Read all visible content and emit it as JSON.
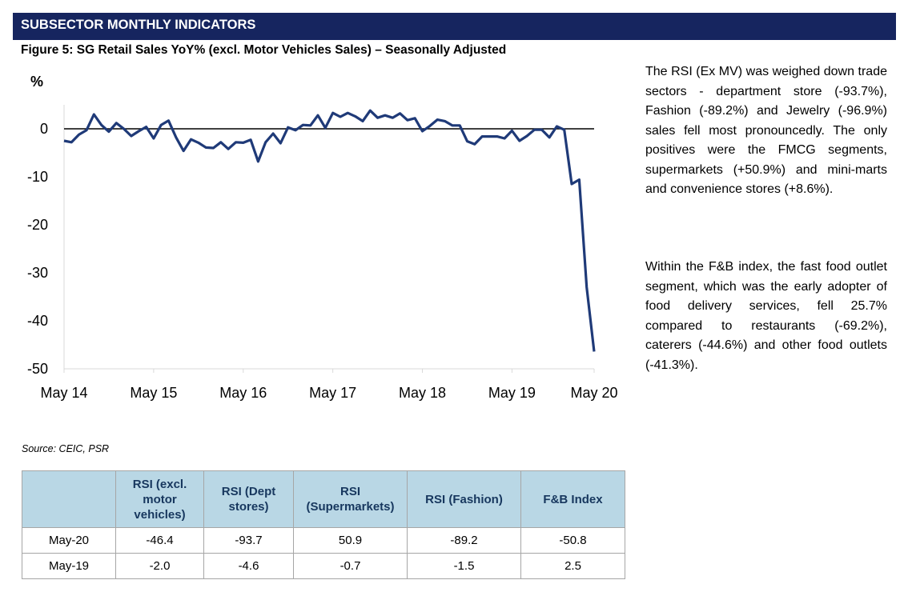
{
  "header": {
    "title": "SUBSECTOR MONTHLY INDICATORS"
  },
  "figure": {
    "title": "Figure 5: SG Retail Sales YoY% (excl. Motor Vehicles Sales) – Seasonally Adjusted"
  },
  "chart_data": {
    "type": "line",
    "ylabel": "%",
    "ylim": [
      -50,
      5
    ],
    "yticks": [
      "0",
      "-10",
      "-20",
      "-30",
      "-40",
      "-50"
    ],
    "x_labels": [
      "May 14",
      "May 15",
      "May 16",
      "May 17",
      "May 18",
      "May 19",
      "May 20"
    ],
    "series": [
      {
        "color": "#1f3a78",
        "values": [
          -2.5,
          -2.8,
          -1.2,
          -0.3,
          3.0,
          0.8,
          -0.6,
          1.2,
          0.0,
          -1.5,
          -0.5,
          0.4,
          -2.0,
          0.8,
          1.7,
          -1.8,
          -4.6,
          -2.2,
          -2.9,
          -3.9,
          -4.0,
          -2.8,
          -4.2,
          -2.8,
          -2.9,
          -2.3,
          -6.8,
          -2.8,
          -1.0,
          -3.0,
          0.3,
          -0.3,
          0.8,
          0.7,
          2.8,
          0.2,
          3.3,
          2.5,
          3.3,
          2.6,
          1.6,
          3.8,
          2.3,
          2.8,
          2.3,
          3.2,
          1.8,
          2.2,
          -0.5,
          0.6,
          1.9,
          1.6,
          0.7,
          0.7,
          -2.6,
          -3.2,
          -1.6,
          -1.6,
          -1.6,
          -2.0,
          -0.4,
          -2.5,
          -1.5,
          -0.2,
          -0.2,
          -1.8,
          0.5,
          -0.2,
          -11.5,
          -10.6,
          -33.0,
          -46.4
        ]
      }
    ],
    "zero_line": true
  },
  "source": "Source: CEIC, PSR",
  "commentary": {
    "p1": "The RSI (Ex MV) was weighed down trade sectors - department store (-93.7%), Fashion (-89.2%) and Jewelry (-96.9%) sales fell most pronouncedly. The only positives were the FMCG segments, supermarkets (+50.9%) and mini-marts and convenience stores (+8.6%).",
    "p2": "Within the F&B index, the fast food outlet segment, which was the early adopter of food delivery services, fell 25.7% compared to restaurants (-69.2%), caterers (-44.6%) and other food outlets (-41.3%)."
  },
  "table": {
    "headers": [
      "",
      "RSI (excl. motor vehicles)",
      "RSI (Dept stores)",
      "RSI (Supermarkets)",
      "RSI (Fashion)",
      "F&B Index"
    ],
    "rows": [
      [
        "May-20",
        "-46.4",
        "-93.7",
        "50.9",
        "-89.2",
        "-50.8"
      ],
      [
        "May-19",
        "-2.0",
        "-4.6",
        "-0.7",
        "-1.5",
        "2.5"
      ]
    ]
  }
}
